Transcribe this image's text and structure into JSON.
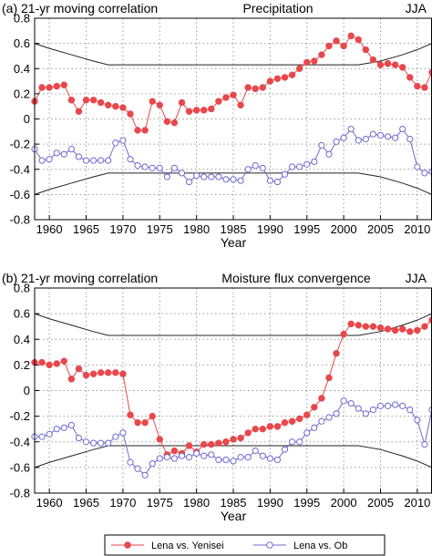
{
  "chart_data": [
    {
      "type": "line",
      "panel_label": "(a) 21-yr moving correlation",
      "title": "Precipitation",
      "season": "JJA",
      "xlabel": "Year",
      "ylabel": "",
      "xlim": [
        1958,
        2012
      ],
      "ylim": [
        -0.8,
        0.8
      ],
      "xticks": [
        1960,
        1965,
        1970,
        1975,
        1980,
        1985,
        1990,
        1995,
        2000,
        2005,
        2010
      ],
      "yticks": [
        0.8,
        0.6,
        0.4,
        0.2,
        0,
        -0.2,
        -0.4,
        -0.6,
        -0.8
      ],
      "grid": "dotted",
      "x": [
        1958,
        1959,
        1960,
        1961,
        1962,
        1963,
        1964,
        1965,
        1966,
        1967,
        1968,
        1969,
        1970,
        1971,
        1972,
        1973,
        1974,
        1975,
        1976,
        1977,
        1978,
        1979,
        1980,
        1981,
        1982,
        1983,
        1984,
        1985,
        1986,
        1987,
        1988,
        1989,
        1990,
        1991,
        1992,
        1993,
        1994,
        1995,
        1996,
        1997,
        1998,
        1999,
        2000,
        2001,
        2002,
        2003,
        2004,
        2005,
        2006,
        2007,
        2008,
        2009,
        2010,
        2011,
        2012
      ],
      "series": [
        {
          "name": "Lena vs. Yenisei",
          "color": "#e8474c",
          "marker": "filled-circle",
          "values": [
            0.14,
            0.25,
            0.25,
            0.26,
            0.27,
            0.15,
            0.06,
            0.15,
            0.15,
            0.13,
            0.11,
            0.1,
            0.09,
            0.04,
            -0.09,
            -0.09,
            0.14,
            0.11,
            -0.02,
            -0.03,
            0.13,
            0.06,
            0.07,
            0.07,
            0.08,
            0.14,
            0.17,
            0.19,
            0.11,
            0.25,
            0.24,
            0.25,
            0.3,
            0.32,
            0.33,
            0.35,
            0.4,
            0.45,
            0.46,
            0.51,
            0.58,
            0.62,
            0.58,
            0.66,
            0.63,
            0.55,
            0.47,
            0.43,
            0.44,
            0.43,
            0.41,
            0.33,
            0.26,
            0.25,
            0.37
          ]
        },
        {
          "name": "Lena vs. Ob",
          "color": "#6e6ad0",
          "marker": "open-circle",
          "values": [
            -0.24,
            -0.33,
            -0.32,
            -0.27,
            -0.28,
            -0.24,
            -0.3,
            -0.33,
            -0.33,
            -0.33,
            -0.33,
            -0.19,
            -0.17,
            -0.32,
            -0.37,
            -0.38,
            -0.39,
            -0.39,
            -0.46,
            -0.39,
            -0.43,
            -0.5,
            -0.45,
            -0.46,
            -0.46,
            -0.46,
            -0.48,
            -0.48,
            -0.49,
            -0.4,
            -0.37,
            -0.39,
            -0.49,
            -0.5,
            -0.44,
            -0.38,
            -0.38,
            -0.36,
            -0.34,
            -0.21,
            -0.28,
            -0.18,
            -0.15,
            -0.08,
            -0.17,
            -0.16,
            -0.12,
            -0.13,
            -0.14,
            -0.15,
            -0.08,
            -0.16,
            -0.38,
            -0.43,
            -0.42
          ]
        }
      ],
      "significance_upper": [
        [
          1958,
          0.6
        ],
        [
          1960,
          0.56
        ],
        [
          1963,
          0.51
        ],
        [
          1966,
          0.46
        ],
        [
          1968,
          0.43
        ],
        [
          2002,
          0.43
        ],
        [
          2005,
          0.46
        ],
        [
          2008,
          0.51
        ],
        [
          2010,
          0.55
        ],
        [
          2012,
          0.6
        ]
      ],
      "significance_lower": [
        [
          1958,
          -0.6
        ],
        [
          1960,
          -0.56
        ],
        [
          1963,
          -0.51
        ],
        [
          1966,
          -0.46
        ],
        [
          1968,
          -0.43
        ],
        [
          2002,
          -0.43
        ],
        [
          2005,
          -0.46
        ],
        [
          2008,
          -0.51
        ],
        [
          2010,
          -0.55
        ],
        [
          2012,
          -0.6
        ]
      ]
    },
    {
      "type": "line",
      "panel_label": "(b) 21-yr moving correlation",
      "title": "Moisture flux convergence",
      "season": "JJA",
      "xlabel": "Year",
      "ylabel": "",
      "xlim": [
        1958,
        2012
      ],
      "ylim": [
        -0.8,
        0.8
      ],
      "xticks": [
        1960,
        1965,
        1970,
        1975,
        1980,
        1985,
        1990,
        1995,
        2000,
        2005,
        2010
      ],
      "yticks": [
        0.8,
        0.6,
        0.4,
        0.2,
        0,
        -0.2,
        -0.4,
        -0.6,
        -0.8
      ],
      "grid": "dotted",
      "x": [
        1958,
        1959,
        1960,
        1961,
        1962,
        1963,
        1964,
        1965,
        1966,
        1967,
        1968,
        1969,
        1970,
        1971,
        1972,
        1973,
        1974,
        1975,
        1976,
        1977,
        1978,
        1979,
        1980,
        1981,
        1982,
        1983,
        1984,
        1985,
        1986,
        1987,
        1988,
        1989,
        1990,
        1991,
        1992,
        1993,
        1994,
        1995,
        1996,
        1997,
        1998,
        1999,
        2000,
        2001,
        2002,
        2003,
        2004,
        2005,
        2006,
        2007,
        2008,
        2009,
        2010,
        2011,
        2012
      ],
      "series": [
        {
          "name": "Lena vs. Yenisei",
          "color": "#e8474c",
          "marker": "filled-circle",
          "values": [
            0.22,
            0.22,
            0.2,
            0.21,
            0.23,
            0.09,
            0.17,
            0.12,
            0.13,
            0.14,
            0.14,
            0.14,
            0.13,
            -0.19,
            -0.25,
            -0.25,
            -0.2,
            -0.38,
            -0.5,
            -0.47,
            -0.49,
            -0.43,
            -0.48,
            -0.42,
            -0.42,
            -0.41,
            -0.4,
            -0.38,
            -0.37,
            -0.33,
            -0.3,
            -0.3,
            -0.28,
            -0.28,
            -0.25,
            -0.24,
            -0.22,
            -0.19,
            -0.13,
            -0.06,
            0.1,
            0.29,
            0.44,
            0.52,
            0.51,
            0.5,
            0.5,
            0.49,
            0.48,
            0.47,
            0.48,
            0.46,
            0.47,
            0.5,
            0.55
          ]
        },
        {
          "name": "Lena vs. Ob",
          "color": "#6e6ad0",
          "marker": "open-circle",
          "values": [
            -0.36,
            -0.36,
            -0.34,
            -0.3,
            -0.29,
            -0.27,
            -0.37,
            -0.4,
            -0.41,
            -0.41,
            -0.41,
            -0.36,
            -0.33,
            -0.56,
            -0.61,
            -0.66,
            -0.57,
            -0.53,
            -0.52,
            -0.53,
            -0.51,
            -0.52,
            -0.49,
            -0.51,
            -0.5,
            -0.54,
            -0.54,
            -0.55,
            -0.52,
            -0.52,
            -0.47,
            -0.51,
            -0.53,
            -0.54,
            -0.46,
            -0.4,
            -0.4,
            -0.33,
            -0.29,
            -0.24,
            -0.21,
            -0.18,
            -0.08,
            -0.1,
            -0.14,
            -0.18,
            -0.15,
            -0.12,
            -0.12,
            -0.11,
            -0.12,
            -0.15,
            -0.23,
            -0.42,
            -0.15
          ]
        }
      ],
      "significance_upper": [
        [
          1958,
          0.6
        ],
        [
          1960,
          0.56
        ],
        [
          1963,
          0.51
        ],
        [
          1966,
          0.46
        ],
        [
          1968,
          0.43
        ],
        [
          2002,
          0.43
        ],
        [
          2005,
          0.46
        ],
        [
          2008,
          0.51
        ],
        [
          2010,
          0.55
        ],
        [
          2012,
          0.6
        ]
      ],
      "significance_lower": [
        [
          1958,
          -0.6
        ],
        [
          1960,
          -0.56
        ],
        [
          1963,
          -0.51
        ],
        [
          1966,
          -0.46
        ],
        [
          1968,
          -0.43
        ],
        [
          2002,
          -0.43
        ],
        [
          2005,
          -0.46
        ],
        [
          2008,
          -0.51
        ],
        [
          2010,
          -0.55
        ],
        [
          2012,
          -0.6
        ]
      ]
    }
  ],
  "legend": {
    "placement": "bottom",
    "entries": [
      {
        "label": "Lena vs. Yenisei",
        "color": "#e8474c",
        "marker": "filled-circle"
      },
      {
        "label": "Lena vs. Ob",
        "color": "#6e6ad0",
        "marker": "open-circle"
      }
    ]
  }
}
